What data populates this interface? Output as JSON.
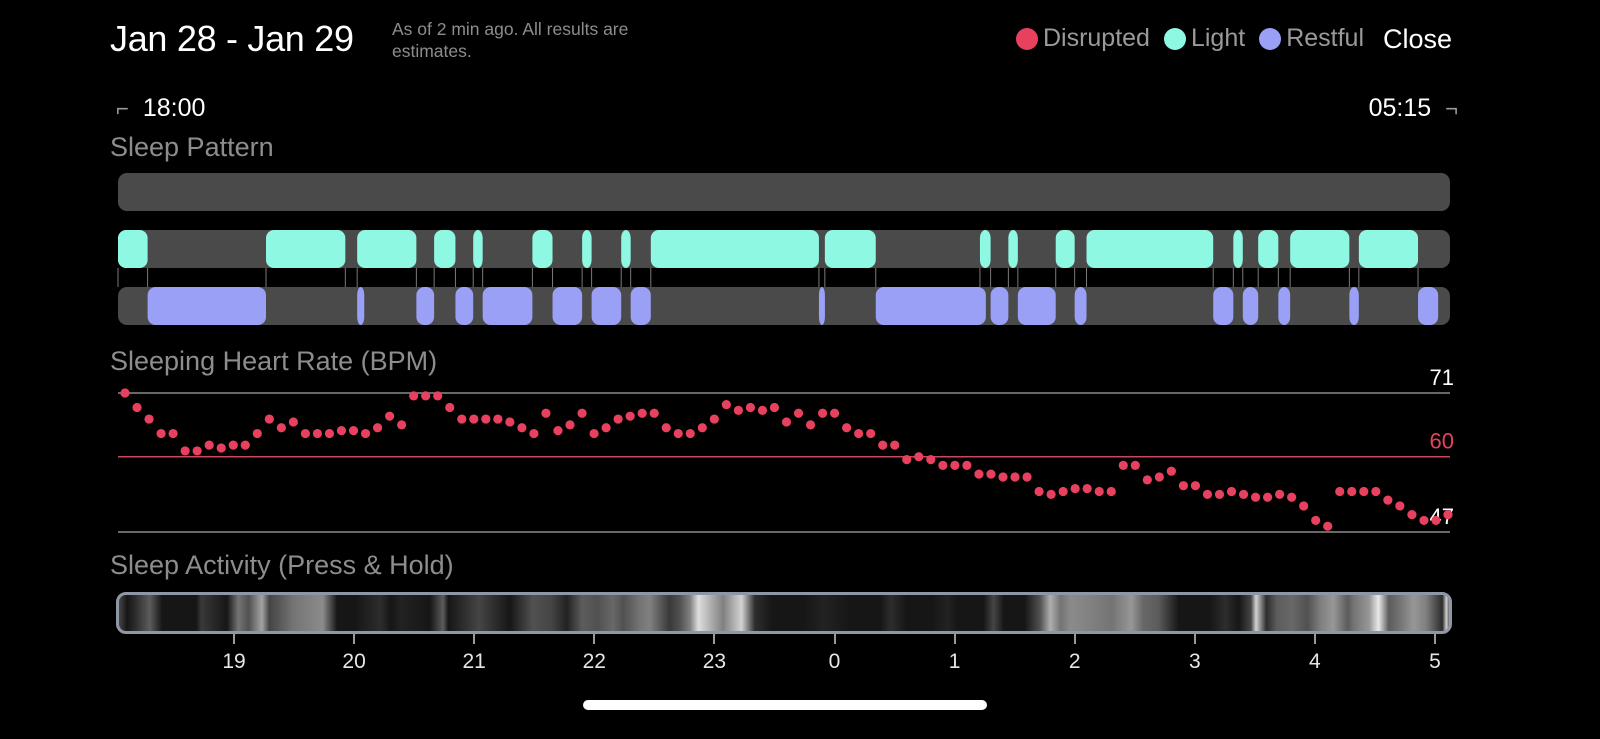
{
  "header": {
    "date_range": "Jan 28 - Jan 29",
    "status_note": "As of 2 min ago. All results are estimates.",
    "close_label": "Close"
  },
  "legend": {
    "disrupted": {
      "label": "Disrupted",
      "color": "#e8405f"
    },
    "light": {
      "label": "Light",
      "color": "#8ff8e2"
    },
    "restful": {
      "label": "Restful",
      "color": "#9aa0f5"
    }
  },
  "range": {
    "start": "18:00",
    "end": "05:15"
  },
  "sections": {
    "sleep_pattern": "Sleep Pattern",
    "heart_rate": "Sleeping Heart Rate (BPM)",
    "activity": "Sleep Activity (Press & Hold)"
  },
  "chart_data": [
    {
      "type": "timeline",
      "title": "Sleep Pattern",
      "x_range_hours": [
        18.0,
        29.25
      ],
      "lanes": [
        "Disrupted",
        "Light",
        "Restful"
      ],
      "segments": {
        "Disrupted": [],
        "Light": [
          [
            18.0,
            18.25
          ],
          [
            19.25,
            19.92
          ],
          [
            20.02,
            20.52
          ],
          [
            20.67,
            20.85
          ],
          [
            21.0,
            21.08
          ],
          [
            21.5,
            21.67
          ],
          [
            21.92,
            22.0
          ],
          [
            22.25,
            22.33
          ],
          [
            22.5,
            23.92
          ],
          [
            23.97,
            24.4
          ],
          [
            25.28,
            25.37
          ],
          [
            25.52,
            25.6
          ],
          [
            25.92,
            26.08
          ],
          [
            26.18,
            27.25
          ],
          [
            27.42,
            27.5
          ],
          [
            27.63,
            27.8
          ],
          [
            27.9,
            28.4
          ],
          [
            28.48,
            28.98
          ]
        ],
        "Restful": [
          [
            18.25,
            19.25
          ],
          [
            20.02,
            20.08
          ],
          [
            20.52,
            20.67
          ],
          [
            20.85,
            21.0
          ],
          [
            21.08,
            21.5
          ],
          [
            21.67,
            21.92
          ],
          [
            22.0,
            22.25
          ],
          [
            22.33,
            22.5
          ],
          [
            23.92,
            23.97
          ],
          [
            24.4,
            25.33
          ],
          [
            25.37,
            25.52
          ],
          [
            25.6,
            25.92
          ],
          [
            26.08,
            26.18
          ],
          [
            27.25,
            27.42
          ],
          [
            27.5,
            27.63
          ],
          [
            27.8,
            27.9
          ],
          [
            28.4,
            28.48
          ],
          [
            28.98,
            29.15
          ]
        ]
      }
    },
    {
      "type": "scatter",
      "title": "Sleeping Heart Rate (BPM)",
      "x_range_hours": [
        18.0,
        29.25
      ],
      "ylim": [
        47,
        71
      ],
      "reference_lines": [
        71,
        60,
        47
      ],
      "highlight_line": 60,
      "y_tick_labels": [
        "71",
        "60",
        "47"
      ],
      "values": [
        71,
        68.5,
        66.5,
        64,
        64,
        61,
        61,
        62,
        61.5,
        62,
        62,
        64,
        66.5,
        65,
        66,
        64,
        64,
        64,
        64.5,
        64.5,
        64,
        65,
        67,
        65.5,
        70.5,
        70.5,
        70.5,
        68.5,
        66.5,
        66.5,
        66.5,
        66.5,
        66,
        65,
        64,
        67.5,
        64.5,
        65.5,
        67.5,
        64,
        65,
        66.5,
        67,
        67.5,
        67.5,
        65,
        64,
        64,
        65,
        66.5,
        69,
        68,
        68.5,
        68,
        68.5,
        66,
        67.5,
        65.5,
        67.5,
        67.5,
        65,
        64,
        64,
        62,
        62,
        59.5,
        60,
        59.5,
        58.5,
        58.5,
        58.5,
        57,
        57,
        56.5,
        56.5,
        56.5,
        54,
        53.5,
        54,
        54.5,
        54.5,
        54,
        54,
        58.5,
        58.5,
        56,
        56.5,
        57.5,
        55,
        55,
        53.5,
        53.5,
        54,
        53.5,
        53,
        53,
        53.5,
        53,
        51.5,
        49,
        48,
        54,
        54,
        54,
        54,
        52.5,
        51.5,
        50,
        49,
        49,
        50
      ]
    },
    {
      "type": "heatmap",
      "title": "Sleep Activity (Press & Hold)",
      "x_tick_labels": [
        "19",
        "20",
        "21",
        "22",
        "23",
        "0",
        "1",
        "2",
        "3",
        "4",
        "5"
      ]
    }
  ]
}
